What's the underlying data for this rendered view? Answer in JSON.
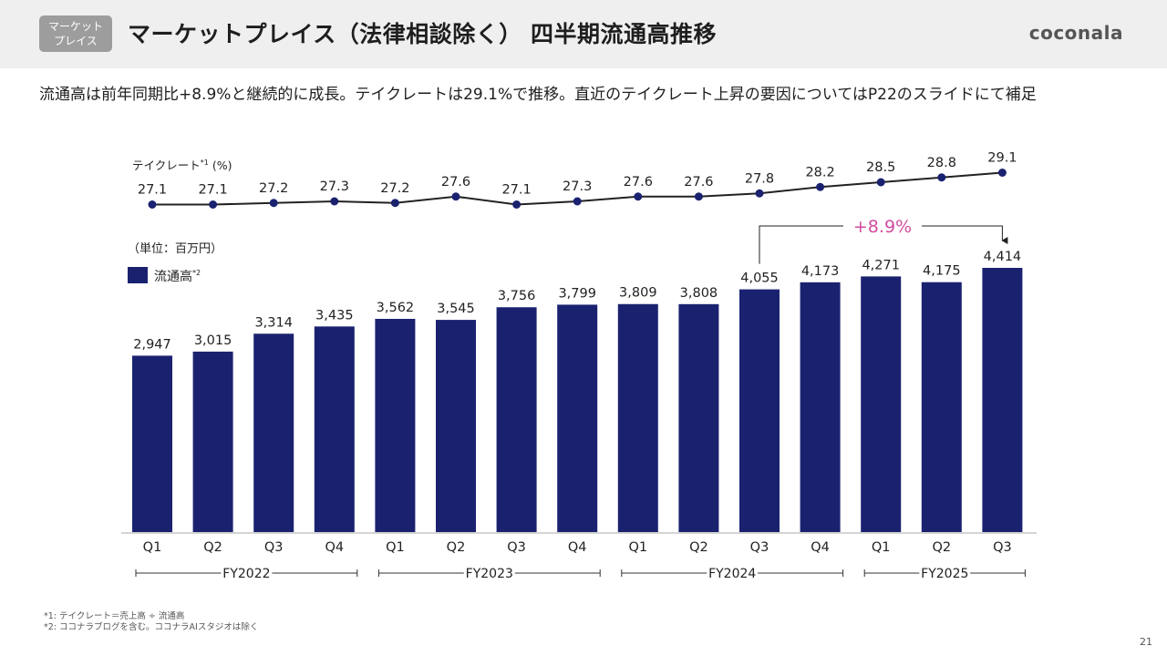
{
  "header": {
    "badge_line1": "マーケット",
    "badge_line2": "プレイス",
    "title": "マーケットプレイス（法律相談除く） 四半期流通高推移",
    "logo": "coconala"
  },
  "subtitle": "流通高は前年同期比+8.9%と継続的に成長。テイクレートは29.1%で推移。直近のテイクレート上昇の要因についてはP22のスライドにて補足",
  "footnotes": {
    "fn1": "*1: テイクレート＝売上高 ÷ 流通高",
    "fn2": "*2: ココナラブログを含む。ココナラAIスタジオは除く"
  },
  "page_number": "21",
  "chart_data": {
    "type": "bar",
    "categories": [
      "Q1",
      "Q2",
      "Q3",
      "Q4",
      "Q1",
      "Q2",
      "Q3",
      "Q4",
      "Q1",
      "Q2",
      "Q3",
      "Q4",
      "Q1",
      "Q2",
      "Q3"
    ],
    "fiscal_years": [
      {
        "label": "FY2022",
        "start": 0,
        "end": 3
      },
      {
        "label": "FY2023",
        "start": 4,
        "end": 7
      },
      {
        "label": "FY2024",
        "start": 8,
        "end": 11
      },
      {
        "label": "FY2025",
        "start": 12,
        "end": 14
      }
    ],
    "series": [
      {
        "name": "流通高",
        "name_sup": "*2",
        "type": "bar",
        "values": [
          2947,
          3015,
          3314,
          3435,
          3562,
          3545,
          3756,
          3799,
          3809,
          3808,
          4055,
          4173,
          4271,
          4175,
          4414
        ],
        "value_labels": [
          "2,947",
          "3,015",
          "3,314",
          "3,435",
          "3,562",
          "3,545",
          "3,756",
          "3,799",
          "3,809",
          "3,808",
          "4,055",
          "4,173",
          "4,271",
          "4,175",
          "4,414"
        ]
      },
      {
        "name": "テイクレート",
        "name_sup": "*1",
        "unit": "(%)",
        "type": "line",
        "values": [
          27.1,
          27.1,
          27.2,
          27.3,
          27.2,
          27.6,
          27.1,
          27.3,
          27.6,
          27.6,
          27.8,
          28.2,
          28.5,
          28.8,
          29.1
        ],
        "value_labels": [
          "27.1",
          "27.1",
          "27.2",
          "27.3",
          "27.2",
          "27.6",
          "27.1",
          "27.3",
          "27.6",
          "27.6",
          "27.8",
          "28.2",
          "28.5",
          "28.8",
          "29.1"
        ]
      }
    ],
    "unit_label": "（単位：百万円）",
    "annotation": {
      "text": "+8.9%",
      "from_index": 10,
      "to_index": 14,
      "color": "#d24ba0"
    },
    "colors": {
      "bar": "#1a2270",
      "line": "#222222",
      "point": "#1a2270"
    }
  }
}
